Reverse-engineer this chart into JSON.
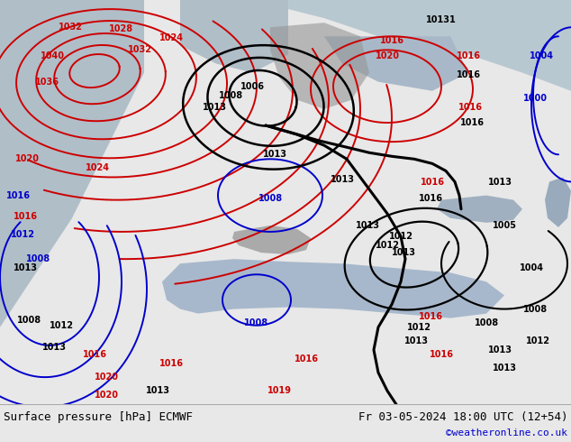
{
  "title_left": "Surface pressure [hPa] ECMWF",
  "title_right": "Fr 03-05-2024 18:00 UTC (12+54)",
  "watermark": "©weatheronline.co.uk",
  "footer_bg": "#e8e8e8",
  "map_bg": "#c8d8b0",
  "contour_red": "#cc0000",
  "contour_blue": "#0000cc",
  "contour_black": "#000000",
  "sea_color": "#b8cce0",
  "land_light": "#c8d8a8",
  "grey_terrain": "#909090"
}
